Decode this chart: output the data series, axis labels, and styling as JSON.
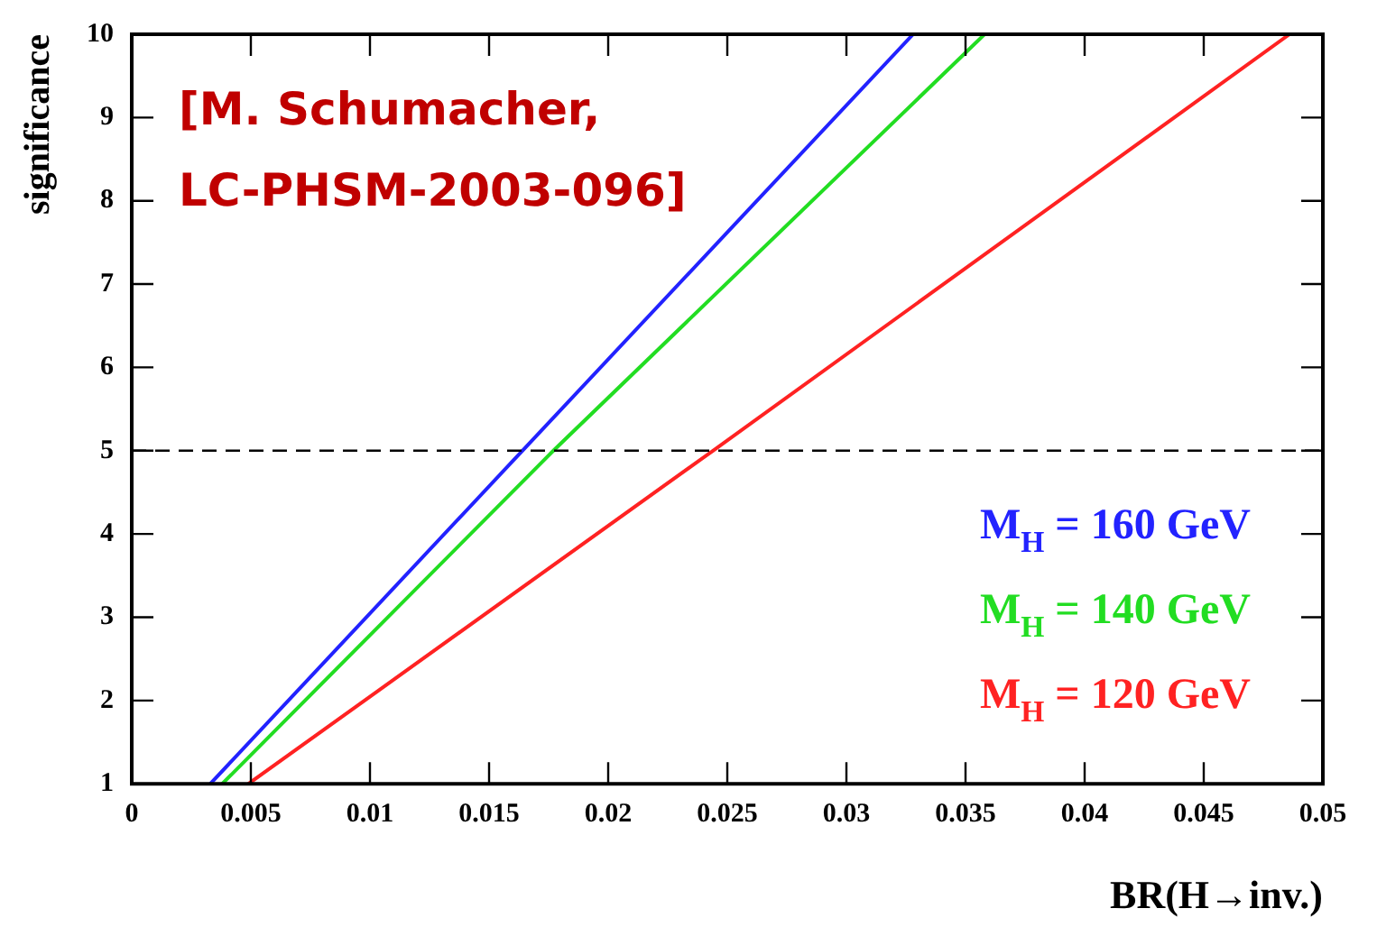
{
  "chart_data": {
    "type": "line",
    "xlabel": "BR(H→inv.)",
    "ylabel": "significance",
    "xlim": [
      0,
      0.05
    ],
    "xticks": [
      0,
      0.005,
      0.01,
      0.015,
      0.02,
      0.025,
      0.03,
      0.035,
      0.04,
      0.045,
      0.05
    ],
    "ylim": [
      1,
      10
    ],
    "yticks": [
      1,
      2,
      3,
      4,
      5,
      6,
      7,
      8,
      9,
      10
    ],
    "grid": false,
    "legend": "bottom right",
    "marker": "none",
    "line_style": "solid",
    "series": [
      {
        "name": "M$_{H}$ = 160 GeV",
        "color": "#2222ff",
        "x": [
          0.0033,
          0.0164,
          0.0328
        ],
        "values": [
          1,
          5,
          10
        ]
      },
      {
        "name": "M$_{H}$ = 140 GeV",
        "color": "#22dd22",
        "x": [
          0.0038,
          0.0177,
          0.0358
        ],
        "values": [
          1,
          5,
          10
        ]
      },
      {
        "name": "M$_{H}$ = 120 GeV",
        "color": "#ff2222",
        "x": [
          0.0049,
          0.0244,
          0.0486
        ],
        "values": [
          1,
          5,
          10
        ]
      }
    ],
    "ref_lines": [
      {
        "axis": "y",
        "value": 5,
        "color": "#000000",
        "line_style": "dashed"
      }
    ],
    "annotations": [
      "[M. Schumacher,\nLC-PHSM-2003-096]"
    ]
  }
}
